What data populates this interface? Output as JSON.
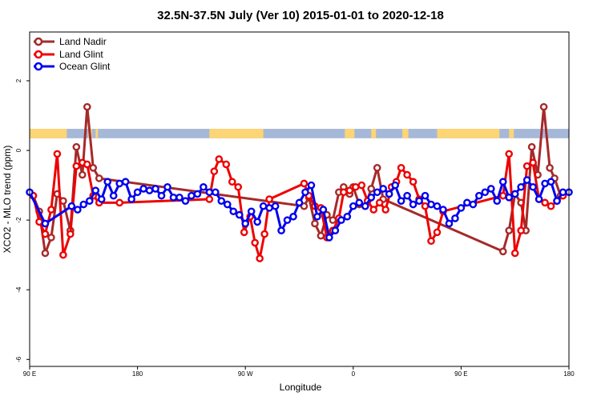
{
  "chart_data": {
    "type": "line",
    "title": "32.5N-37.5N July (Ver 10)   2015-01-01 to 2020-12-18",
    "xlabel": "Longitude",
    "ylabel": "XCO2 - MLO trend (ppm)",
    "x_tick_labels": [
      "90 E",
      "180",
      "90 W",
      "0",
      "90 E",
      "180"
    ],
    "y_tick_labels": [
      "2",
      "0",
      "-2",
      "-4",
      "-6"
    ],
    "xlim": [
      0,
      450
    ],
    "ylim": [
      -6.2,
      3.4
    ],
    "y_ticks": [
      2,
      0,
      -2,
      -4,
      -6
    ],
    "x_ticks": [
      0,
      90,
      180,
      270,
      360,
      450
    ],
    "legend_position": "top-left",
    "land_mask_band": {
      "y_range": [
        0.35,
        0.62
      ],
      "land_color": "#fcd575",
      "ocean_color": "#a6b8d8",
      "land_segments": [
        [
          0,
          31
        ],
        [
          49,
          52
        ],
        [
          55,
          57
        ],
        [
          150,
          195
        ],
        [
          263,
          271
        ],
        [
          285,
          289
        ],
        [
          311,
          316
        ],
        [
          340,
          392
        ],
        [
          400,
          404
        ]
      ]
    },
    "series": [
      {
        "name": "Land Nadir",
        "color": "#a52a2a",
        "x": [
          3,
          8,
          13,
          18,
          23,
          28,
          34,
          39,
          44,
          48,
          53,
          58,
          229,
          233,
          238,
          243,
          248,
          253,
          258,
          262,
          267,
          270,
          275,
          280,
          285,
          290,
          295,
          395,
          400,
          405,
          410,
          414,
          419,
          424,
          429,
          434,
          438,
          443
        ],
        "y": [
          -1.3,
          -1.75,
          -2.95,
          -2.5,
          -1.25,
          -1.45,
          -2.3,
          0.1,
          -0.7,
          1.25,
          -0.5,
          -0.8,
          -1.6,
          -1.35,
          -2.1,
          -2.45,
          -1.85,
          -2.0,
          -1.2,
          -1.05,
          -1.25,
          -1.05,
          -1.55,
          -1.6,
          -1.1,
          -0.5,
          -1.4,
          -2.9,
          -2.3,
          -1.25,
          -1.5,
          -2.3,
          0.1,
          -0.7,
          1.25,
          -0.5,
          -0.8,
          -1.3
        ]
      },
      {
        "name": "Land Glint",
        "color": "#ee0000",
        "x": [
          3,
          8,
          13,
          18,
          23,
          28,
          34,
          39,
          44,
          48,
          53,
          58,
          75,
          150,
          154,
          158,
          164,
          169,
          174,
          179,
          184,
          188,
          192,
          196,
          200,
          229,
          233,
          238,
          243,
          248,
          253,
          258,
          262,
          267,
          272,
          277,
          282,
          287,
          292,
          297,
          302,
          306,
          310,
          315,
          320,
          325,
          330,
          335,
          340,
          345,
          395,
          400,
          405,
          410,
          415,
          420,
          425,
          430,
          435,
          440,
          445
        ],
        "y": [
          -1.3,
          -2.05,
          -2.4,
          -1.7,
          -0.1,
          -3.0,
          -2.4,
          -0.45,
          -0.35,
          -0.4,
          -1.3,
          -1.5,
          -1.5,
          -1.4,
          -0.6,
          -0.25,
          -0.4,
          -0.9,
          -1.05,
          -2.35,
          -1.9,
          -2.65,
          -3.1,
          -2.4,
          -1.4,
          -0.95,
          -1.3,
          -1.6,
          -1.65,
          -2.5,
          -2.3,
          -1.95,
          -1.2,
          -1.15,
          -1.05,
          -1.0,
          -1.45,
          -1.7,
          -1.5,
          -1.7,
          -1.05,
          -0.9,
          -0.5,
          -0.7,
          -0.9,
          -1.4,
          -1.6,
          -2.6,
          -2.35,
          -1.75,
          -1.3,
          -0.1,
          -2.95,
          -2.3,
          -0.45,
          -0.35,
          -1.4,
          -1.5,
          -1.6,
          -1.45,
          -1.3
        ]
      },
      {
        "name": "Ocean Glint",
        "color": "#0000ee",
        "x": [
          0,
          13,
          35,
          40,
          45,
          50,
          55,
          60,
          65,
          70,
          75,
          80,
          85,
          90,
          95,
          100,
          105,
          110,
          115,
          120,
          125,
          130,
          135,
          140,
          145,
          150,
          155,
          160,
          165,
          170,
          175,
          180,
          185,
          190,
          195,
          200,
          205,
          210,
          215,
          220,
          225,
          230,
          235,
          240,
          245,
          250,
          255,
          260,
          265,
          270,
          275,
          280,
          285,
          290,
          295,
          300,
          305,
          310,
          315,
          320,
          325,
          330,
          335,
          340,
          345,
          350,
          355,
          360,
          365,
          370,
          375,
          380,
          385,
          390,
          395,
          400,
          405,
          410,
          415,
          420,
          425,
          430,
          435,
          440,
          445,
          450
        ],
        "y": [
          -1.2,
          -2.1,
          -1.6,
          -1.7,
          -1.55,
          -1.45,
          -1.15,
          -1.4,
          -0.9,
          -1.3,
          -0.95,
          -0.9,
          -1.4,
          -1.2,
          -1.1,
          -1.15,
          -1.1,
          -1.3,
          -1.05,
          -1.35,
          -1.35,
          -1.45,
          -1.3,
          -1.25,
          -1.05,
          -1.2,
          -1.2,
          -1.45,
          -1.55,
          -1.75,
          -1.85,
          -2.1,
          -1.75,
          -2.05,
          -1.6,
          -1.65,
          -1.6,
          -2.3,
          -2.0,
          -1.9,
          -1.5,
          -1.2,
          -1.0,
          -1.9,
          -1.7,
          -2.5,
          -2.3,
          -2.0,
          -1.9,
          -1.6,
          -1.5,
          -1.6,
          -1.35,
          -1.2,
          -1.1,
          -1.25,
          -1.0,
          -1.45,
          -1.3,
          -1.55,
          -1.45,
          -1.3,
          -1.55,
          -1.6,
          -1.7,
          -2.1,
          -1.95,
          -1.65,
          -1.5,
          -1.55,
          -1.3,
          -1.2,
          -1.1,
          -1.45,
          -0.9,
          -1.35,
          -1.25,
          -1.05,
          -0.85,
          -1.05,
          -1.4,
          -0.95,
          -0.9,
          -1.45,
          -1.2,
          -1.2
        ]
      }
    ]
  }
}
